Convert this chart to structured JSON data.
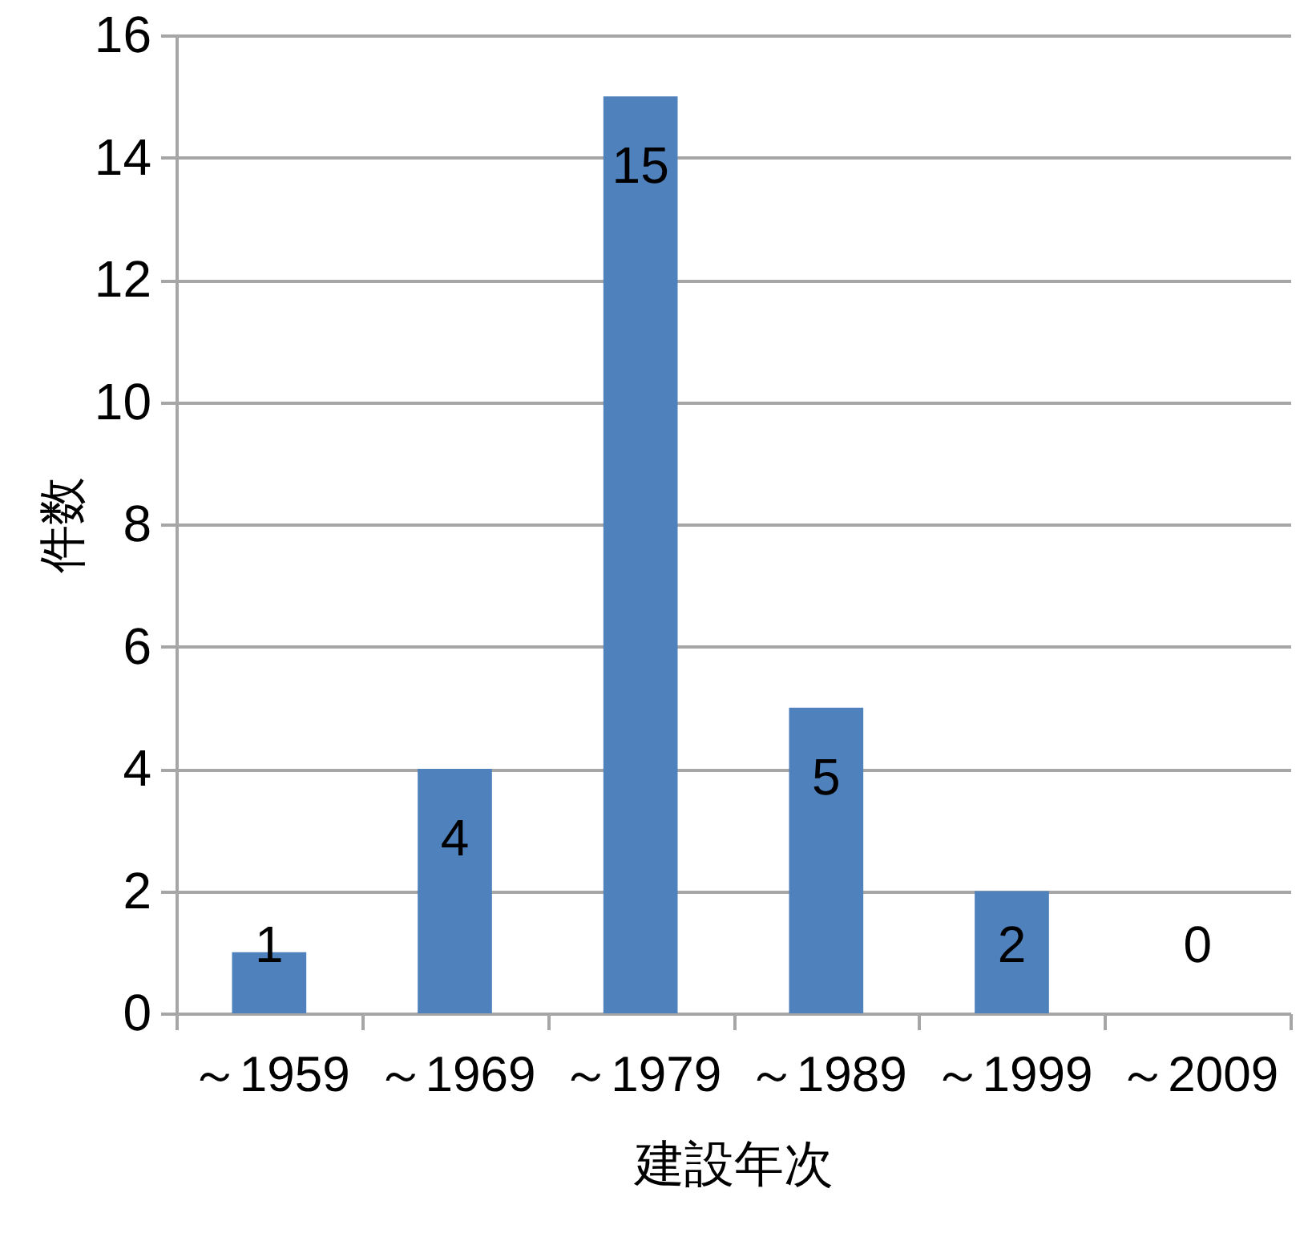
{
  "chart_data": {
    "type": "bar",
    "xlabel": "建設年次",
    "ylabel": "件数",
    "categories": [
      "～1959",
      "～1969",
      "～1979",
      "～1989",
      "～1999",
      "～2009"
    ],
    "values": [
      1,
      4,
      15,
      5,
      2,
      0
    ],
    "color": "#4f81bd",
    "ylim": [
      0,
      16
    ],
    "yticks": [
      0,
      2,
      4,
      6,
      8,
      10,
      12,
      14,
      16
    ],
    "grid": "y",
    "data_labels": true
  }
}
